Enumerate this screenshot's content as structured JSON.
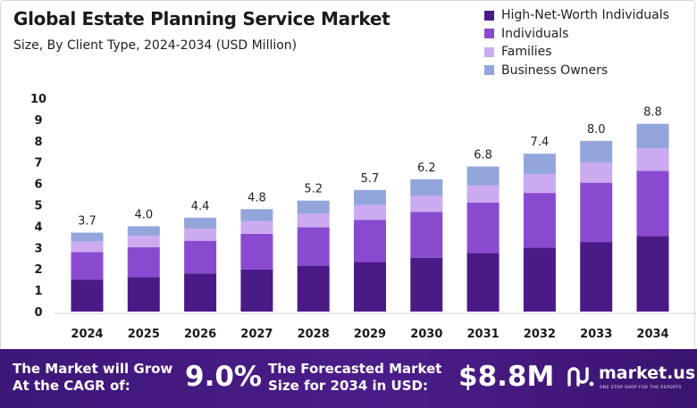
{
  "chart_data": {
    "type": "bar",
    "stacked": true,
    "title": "Global Estate Planning Service Market",
    "subtitle": "Size, By Client Type, 2024-2034 (USD Million)",
    "categories": [
      "2024",
      "2025",
      "2026",
      "2027",
      "2028",
      "2029",
      "2030",
      "2031",
      "2032",
      "2033",
      "2034"
    ],
    "series": [
      {
        "name": "High-Net-Worth Individuals",
        "color": "#4a1a86",
        "values": [
          1.5,
          1.62,
          1.79,
          1.97,
          2.15,
          2.32,
          2.52,
          2.75,
          2.99,
          3.26,
          3.54
        ]
      },
      {
        "name": "Individuals",
        "color": "#8a4ad0",
        "values": [
          1.29,
          1.4,
          1.53,
          1.67,
          1.8,
          1.98,
          2.15,
          2.36,
          2.57,
          2.78,
          3.06
        ]
      },
      {
        "name": "Families",
        "color": "#ccaaf0",
        "values": [
          0.5,
          0.53,
          0.56,
          0.6,
          0.64,
          0.69,
          0.75,
          0.8,
          0.87,
          0.95,
          1.05
        ]
      },
      {
        "name": "Business Owners",
        "color": "#93a6dc",
        "values": [
          0.41,
          0.45,
          0.52,
          0.56,
          0.61,
          0.71,
          0.78,
          0.89,
          0.97,
          1.01,
          1.15
        ]
      }
    ],
    "totals": [
      "3.7",
      "4.0",
      "4.4",
      "4.8",
      "5.2",
      "5.7",
      "6.2",
      "6.8",
      "7.4",
      "8.0",
      "8.8"
    ],
    "yticks": [
      "0",
      "1",
      "2",
      "3",
      "4",
      "5",
      "6",
      "7",
      "8",
      "9",
      "10"
    ],
    "ylim": [
      0,
      10
    ],
    "grid": false,
    "legend_position": "top-right"
  },
  "footer": {
    "cagr_label": "The Market will Grow At the CAGR of:",
    "cagr_value": "9.0%",
    "forecast_label": "The Forecasted Market Size for 2034 in USD:",
    "forecast_value": "$8.8M",
    "brand_name": "market.us",
    "brand_tagline": "ONE STOP SHOP FOR THE REPORTS",
    "brand_icon": "market-us-logo-icon"
  }
}
